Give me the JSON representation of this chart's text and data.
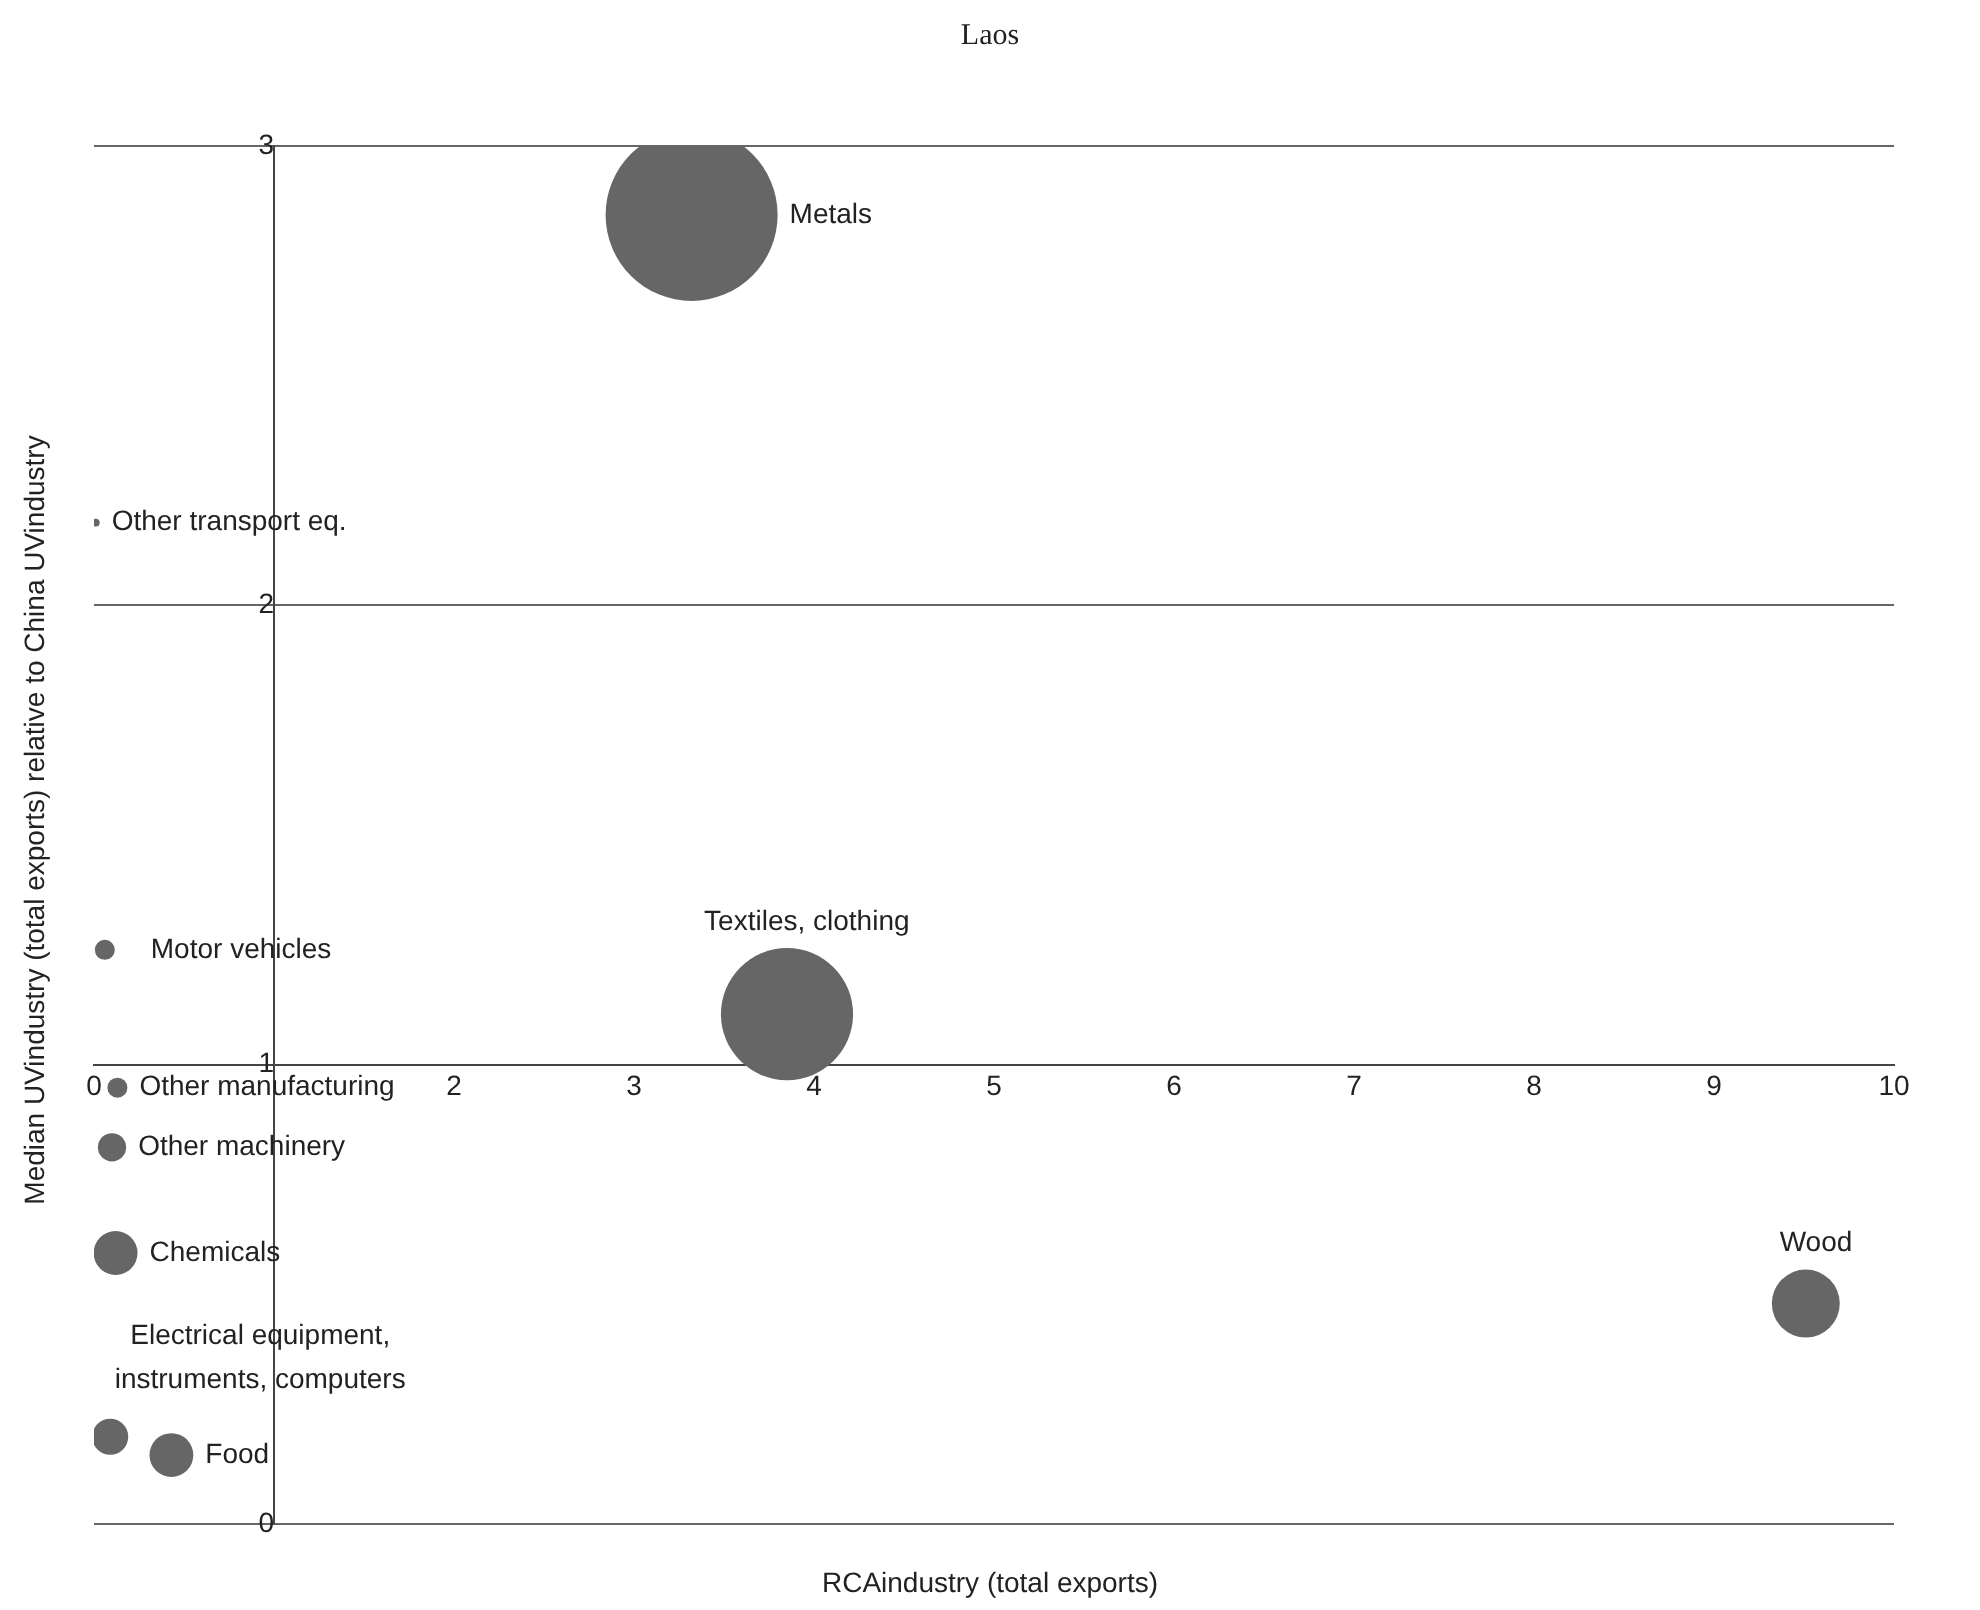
{
  "chart_data": {
    "type": "bubble",
    "title": "Laos",
    "xlabel": "RCAindustry (total exports)",
    "ylabel": "Median UVindustry (total exports) relative to China UVindustry",
    "xlim": [
      0,
      10
    ],
    "xticks": [
      0,
      {
        "value": 1,
        "label": null
      },
      2,
      3,
      4,
      5,
      6,
      7,
      8,
      9,
      10
    ],
    "ylim": [
      0,
      3
    ],
    "yticks": [
      0,
      1,
      2,
      3
    ],
    "grid": "y",
    "legend": false,
    "series": [
      {
        "name": "Metals",
        "color": "#666666",
        "x": [
          3.32
        ],
        "values": [
          2.85
        ],
        "sizes": [
          1
        ]
      },
      {
        "name": "Other transport eq.",
        "color": "#666666",
        "x": [
          0.01
        ],
        "values": [
          2.18
        ],
        "sizes": [
          0.002
        ]
      },
      {
        "name": "Motor vehicles",
        "color": "#666666",
        "x": [
          0.06
        ],
        "values": [
          1.25
        ],
        "sizes": [
          0.0135
        ]
      },
      {
        "name": "Textiles, clothing",
        "color": "#666666",
        "x": [
          3.85
        ],
        "values": [
          1.11
        ],
        "sizes": [
          0.59
        ]
      },
      {
        "name": "Other manufacturing",
        "color": "#666666",
        "x": [
          0.13
        ],
        "values": [
          0.95
        ],
        "sizes": [
          0.0135
        ]
      },
      {
        "name": "Other machinery",
        "color": "#666666",
        "x": [
          0.1
        ],
        "values": [
          0.82
        ],
        "sizes": [
          0.027
        ]
      },
      {
        "name": "Chemicals",
        "color": "#666666",
        "x": [
          0.12
        ],
        "values": [
          0.59
        ],
        "sizes": [
          0.065
        ]
      },
      {
        "name": "Wood",
        "color": "#666666",
        "x": [
          9.51
        ],
        "values": [
          0.48
        ],
        "sizes": [
          0.156
        ]
      },
      {
        "name": "Electrical equipment, instruments, computers",
        "color": "#666666",
        "x": [
          0.09
        ],
        "values": [
          0.19
        ],
        "sizes": [
          0.044
        ]
      },
      {
        "name": "Food",
        "color": "#666666",
        "x": [
          0.43
        ],
        "values": [
          0.15
        ],
        "sizes": [
          0.065
        ]
      }
    ]
  }
}
